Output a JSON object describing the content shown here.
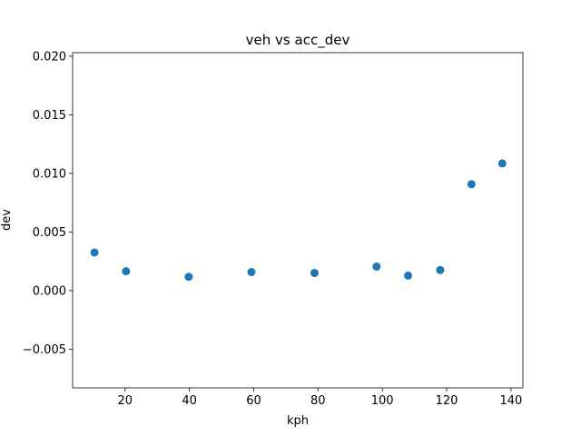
{
  "chart_data": {
    "type": "scatter",
    "title": "veh vs acc_dev",
    "xlabel": "kph",
    "ylabel": "dev",
    "xlim": [
      3.7,
      143.7
    ],
    "ylim": [
      -0.0083,
      0.0203
    ],
    "xticks": [
      20,
      40,
      60,
      80,
      100,
      120,
      140
    ],
    "xtick_labels": [
      "20",
      "40",
      "60",
      "80",
      "100",
      "120",
      "140"
    ],
    "yticks": [
      -0.005,
      0.0,
      0.005,
      0.01,
      0.015,
      0.02
    ],
    "ytick_labels": [
      "−0.005",
      "0.000",
      "0.005",
      "0.010",
      "0.015",
      "0.020"
    ],
    "grid": false,
    "series": [
      {
        "color": "#1f77b4",
        "marker": "circle",
        "x": [
          10.5,
          20.3,
          39.8,
          59.3,
          78.9,
          98.2,
          108.0,
          118.0,
          127.7,
          137.3
        ],
        "y": [
          0.00325,
          0.00165,
          0.00118,
          0.00158,
          0.0015,
          0.00205,
          0.00128,
          0.00175,
          0.00908,
          0.01085
        ]
      }
    ]
  }
}
